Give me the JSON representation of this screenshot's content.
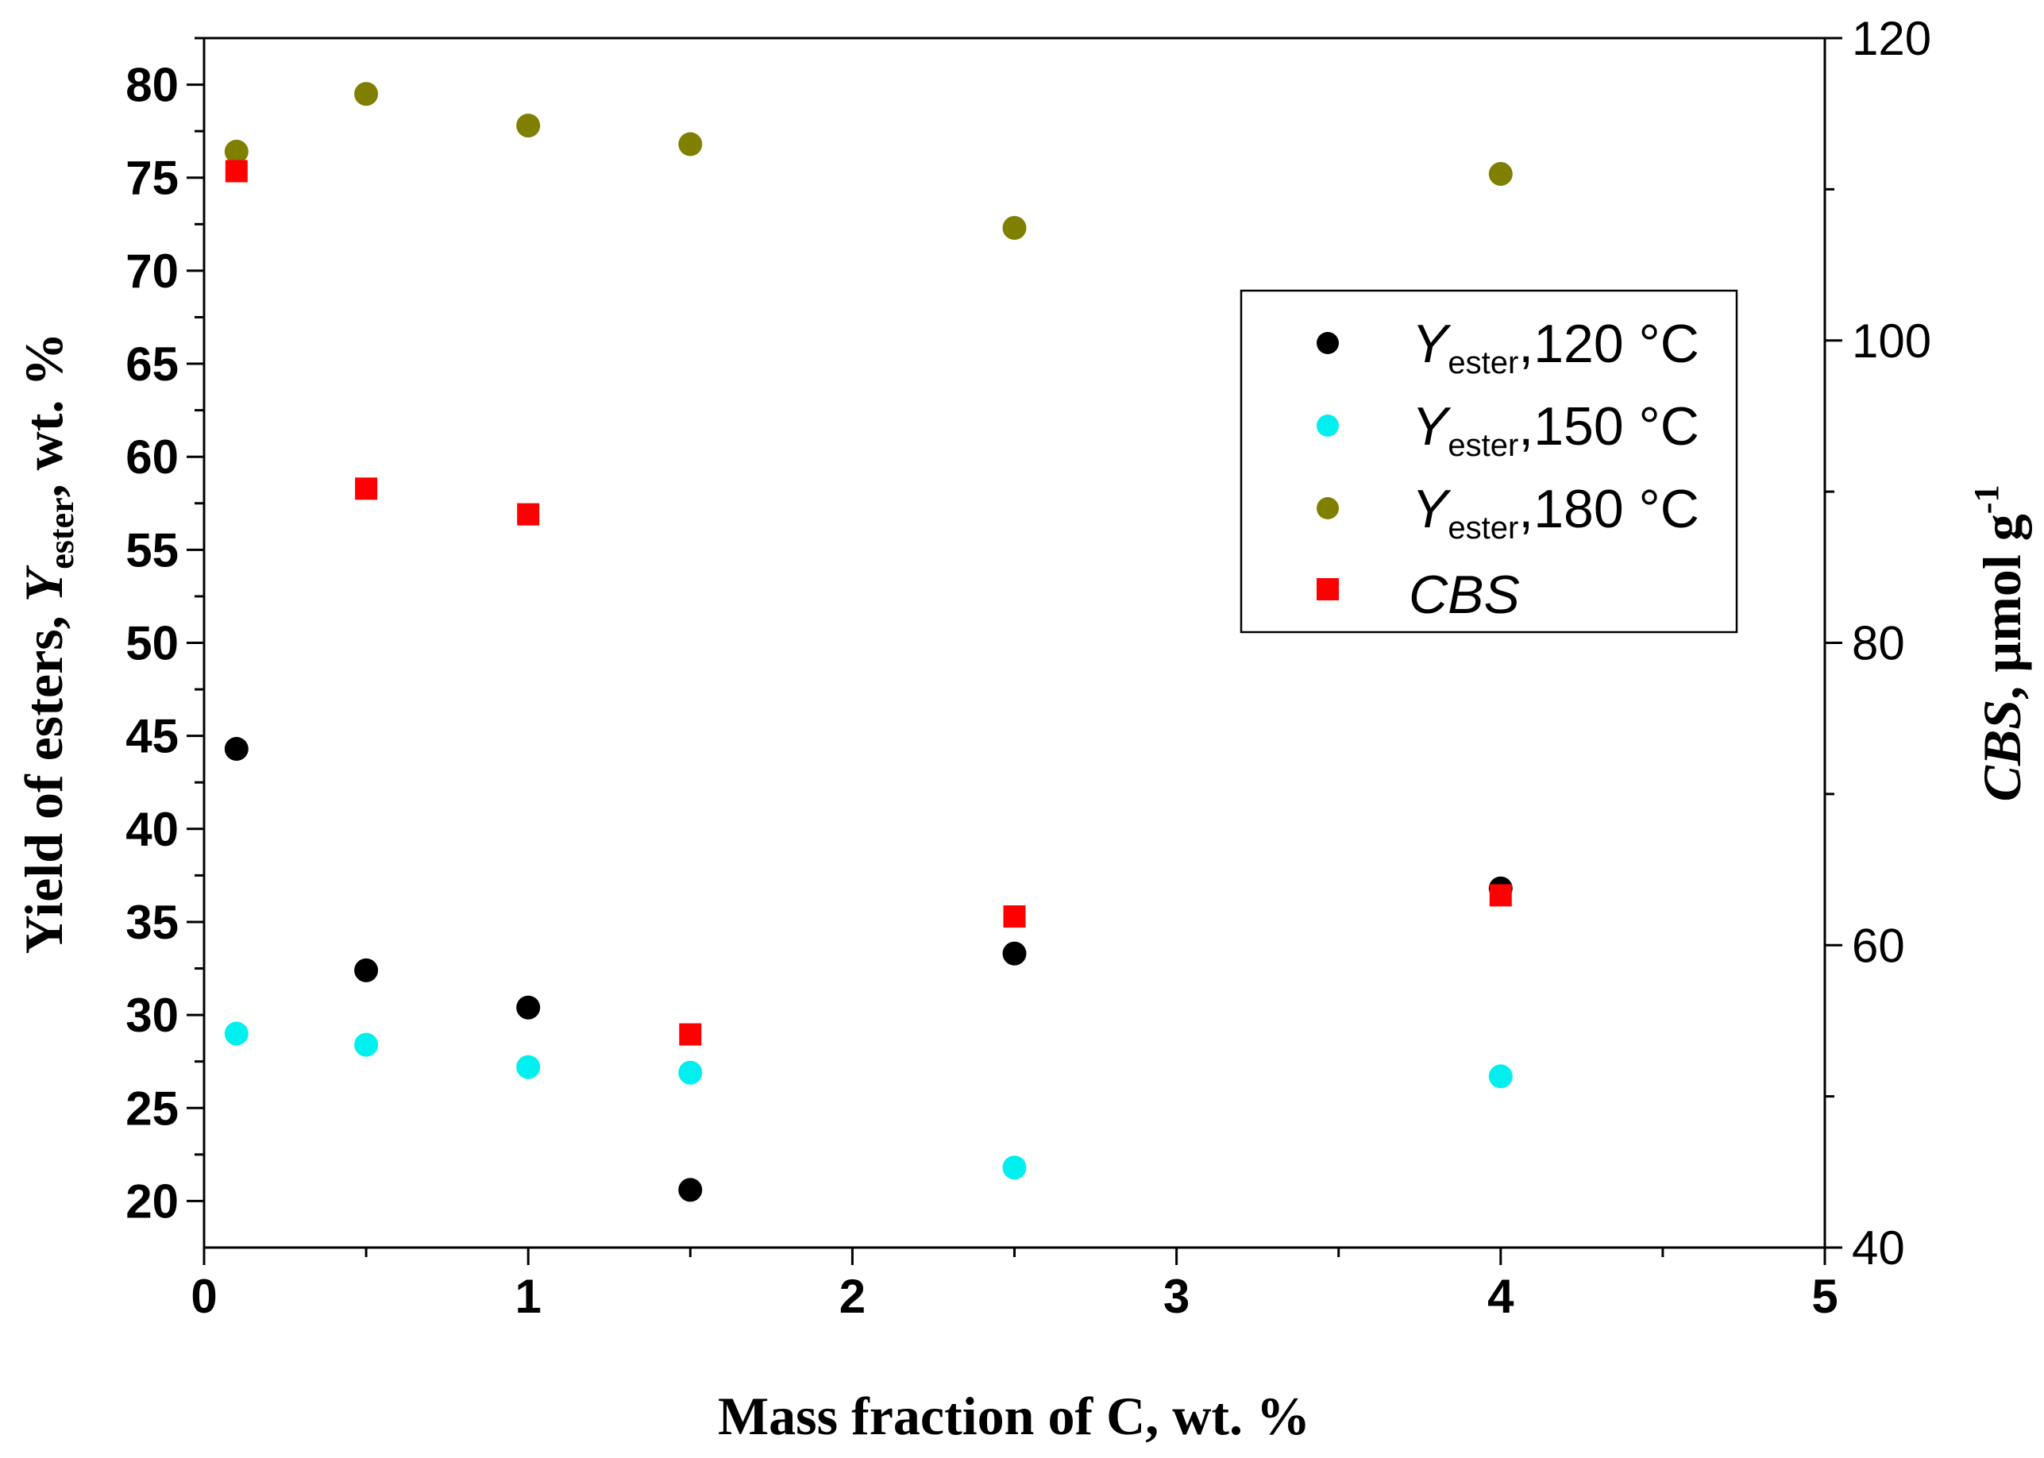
{
  "chart_data": {
    "type": "scatter",
    "x_axis": {
      "label": "Mass fraction of C, wt. %",
      "range": [
        0,
        5
      ],
      "ticks": [
        "0",
        "1",
        "2",
        "3",
        "4",
        "5"
      ]
    },
    "y_axis_left": {
      "label_prefix": "Yield of esters, ",
      "label_var": "Y",
      "label_sub": "ester",
      "label_suffix": ", wt. %",
      "range": [
        17.5,
        82.5
      ],
      "ticks": [
        "20",
        "25",
        "30",
        "35",
        "40",
        "45",
        "50",
        "55",
        "60",
        "65",
        "70",
        "75",
        "80"
      ]
    },
    "y_axis_right": {
      "label_var": "CBS",
      "label_suffix": ", µmol g",
      "label_sup": "-1",
      "range": [
        40,
        120
      ],
      "ticks": [
        "40",
        "60",
        "80",
        "100",
        "120"
      ]
    },
    "series": [
      {
        "name": "Y_ester,120 °C",
        "legend_sub": "ester",
        "legend_suffix": ",120 °C",
        "color": "#000000",
        "marker": "circle",
        "axis": "left",
        "x": [
          0.1,
          0.5,
          1.0,
          1.5,
          2.5,
          4.0
        ],
        "y": [
          44.3,
          32.4,
          30.4,
          20.6,
          33.3,
          36.8
        ]
      },
      {
        "name": "Y_ester,150 °C",
        "legend_sub": "ester",
        "legend_suffix": ",150 °C",
        "color": "#00f0f0",
        "marker": "circle",
        "axis": "left",
        "x": [
          0.1,
          0.5,
          1.0,
          1.5,
          2.5,
          4.0
        ],
        "y": [
          29.0,
          28.4,
          27.2,
          26.9,
          21.8,
          26.7
        ]
      },
      {
        "name": "Y_ester,180 °C",
        "legend_sub": "ester",
        "legend_suffix": ",180 °C",
        "color": "#7f7f00",
        "marker": "circle",
        "axis": "left",
        "x": [
          0.1,
          0.5,
          1.0,
          1.5,
          2.5,
          4.0
        ],
        "y": [
          76.4,
          79.5,
          77.8,
          76.8,
          72.3,
          75.2
        ]
      },
      {
        "name": "CBS",
        "color": "#ff0000",
        "marker": "square",
        "axis": "right",
        "x": [
          0.1,
          0.5,
          1.0,
          1.5,
          2.5,
          4.0
        ],
        "y": [
          111.2,
          90.2,
          88.5,
          54.1,
          61.9,
          63.3
        ]
      }
    ],
    "legend_position": "upper-right"
  }
}
